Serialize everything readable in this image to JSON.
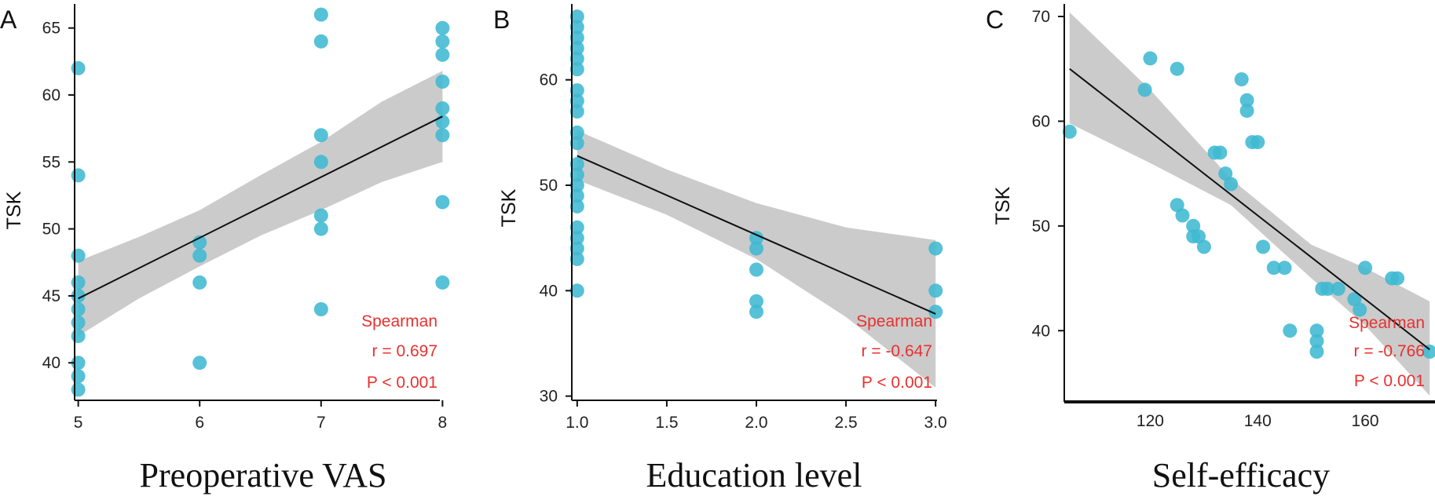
{
  "chart_data": [
    {
      "type": "scatter",
      "panel_label": "A",
      "xlabel": "Preoperative VAS",
      "ylabel": "TSK",
      "xlim": [
        4.97,
        8.03
      ],
      "ylim": [
        37.2,
        66.8
      ],
      "xticks": [
        5,
        6,
        7,
        8
      ],
      "yticks": [
        40,
        45,
        50,
        55,
        60,
        65
      ],
      "x_tick_labels": [
        "5",
        "6",
        "7",
        "8"
      ],
      "y_tick_labels": [
        "40",
        "45",
        "50",
        "55",
        "60",
        "65"
      ],
      "points": [
        [
          5,
          62
        ],
        [
          5,
          54
        ],
        [
          5,
          48
        ],
        [
          5,
          46
        ],
        [
          5,
          45
        ],
        [
          5,
          44
        ],
        [
          5,
          43
        ],
        [
          5,
          42
        ],
        [
          5,
          40
        ],
        [
          5,
          39
        ],
        [
          5,
          38
        ],
        [
          6,
          49
        ],
        [
          6,
          48
        ],
        [
          6,
          46
        ],
        [
          6,
          40
        ],
        [
          7,
          66
        ],
        [
          7,
          64
        ],
        [
          7,
          57
        ],
        [
          7,
          55
        ],
        [
          7,
          51
        ],
        [
          7,
          50
        ],
        [
          7,
          44
        ],
        [
          8,
          65
        ],
        [
          8,
          64
        ],
        [
          8,
          63
        ],
        [
          8,
          61
        ],
        [
          8,
          59
        ],
        [
          8,
          58
        ],
        [
          8,
          57
        ],
        [
          8,
          52
        ],
        [
          8,
          46
        ]
      ],
      "fit": {
        "x": [
          5.0,
          8.0
        ],
        "y": [
          44.8,
          58.4
        ]
      },
      "confidence_band": {
        "x": [
          5.0,
          5.5,
          6.0,
          6.5,
          7.0,
          7.5,
          8.0
        ],
        "lower": [
          42.0,
          44.8,
          47.2,
          49.5,
          51.4,
          53.5,
          55.0
        ],
        "upper": [
          47.6,
          49.4,
          51.4,
          54.0,
          56.5,
          59.5,
          61.8
        ]
      },
      "annotation": [
        "Spearman",
        "r = 0.697",
        "P < 0.001"
      ]
    },
    {
      "type": "scatter",
      "panel_label": "B",
      "xlabel": "Education level",
      "ylabel": "TSK",
      "xlim": [
        0.97,
        3.03
      ],
      "ylim": [
        29.6,
        67.2
      ],
      "xticks": [
        1.0,
        1.5,
        2.0,
        2.5,
        3.0
      ],
      "yticks": [
        30,
        40,
        50,
        60
      ],
      "x_tick_labels": [
        "1.0",
        "1.5",
        "2.0",
        "2.5",
        "3.0"
      ],
      "y_tick_labels": [
        "30",
        "40",
        "50",
        "60"
      ],
      "points": [
        [
          1,
          66
        ],
        [
          1,
          65
        ],
        [
          1,
          64
        ],
        [
          1,
          63
        ],
        [
          1,
          62
        ],
        [
          1,
          61
        ],
        [
          1,
          59
        ],
        [
          1,
          58
        ],
        [
          1,
          57
        ],
        [
          1,
          55
        ],
        [
          1,
          54
        ],
        [
          1,
          52
        ],
        [
          1,
          51
        ],
        [
          1,
          50
        ],
        [
          1,
          49
        ],
        [
          1,
          48
        ],
        [
          1,
          46
        ],
        [
          1,
          45
        ],
        [
          1,
          44
        ],
        [
          1,
          43
        ],
        [
          1,
          40
        ],
        [
          2,
          45
        ],
        [
          2,
          44
        ],
        [
          2,
          42
        ],
        [
          2,
          39
        ],
        [
          2,
          38
        ],
        [
          3,
          44
        ],
        [
          3,
          40
        ],
        [
          3,
          38
        ]
      ],
      "fit": {
        "x": [
          1.0,
          3.0
        ],
        "y": [
          52.8,
          37.8
        ]
      },
      "confidence_band": {
        "x": [
          1.0,
          1.5,
          2.0,
          2.5,
          3.0
        ],
        "lower": [
          50.5,
          47.2,
          43.0,
          37.5,
          30.8
        ],
        "upper": [
          55.2,
          51.5,
          48.3,
          46.0,
          44.8
        ]
      },
      "annotation": [
        "Spearman",
        "r = -0.647",
        "P < 0.001"
      ]
    },
    {
      "type": "scatter",
      "panel_label": "C",
      "xlabel": "Self-efficacy",
      "ylabel": "TSK",
      "xlim": [
        104,
        173
      ],
      "ylim": [
        33.2,
        71.2
      ],
      "xticks": [
        120,
        140,
        160
      ],
      "yticks": [
        40,
        50,
        60,
        70
      ],
      "x_tick_labels": [
        "120",
        "140",
        "160"
      ],
      "y_tick_labels": [
        "40",
        "50",
        "60",
        "70"
      ],
      "points": [
        [
          105,
          59
        ],
        [
          119,
          63
        ],
        [
          120,
          66
        ],
        [
          125,
          65
        ],
        [
          125,
          52
        ],
        [
          126,
          51
        ],
        [
          128,
          50
        ],
        [
          128,
          49
        ],
        [
          129,
          49
        ],
        [
          130,
          48
        ],
        [
          132,
          57
        ],
        [
          133,
          57
        ],
        [
          134,
          55
        ],
        [
          135,
          54
        ],
        [
          137,
          64
        ],
        [
          138,
          62
        ],
        [
          138,
          61
        ],
        [
          139,
          58
        ],
        [
          140,
          58
        ],
        [
          141,
          48
        ],
        [
          143,
          46
        ],
        [
          145,
          46
        ],
        [
          146,
          40
        ],
        [
          151,
          40
        ],
        [
          151,
          39
        ],
        [
          151,
          38
        ],
        [
          152,
          44
        ],
        [
          153,
          44
        ],
        [
          155,
          44
        ],
        [
          158,
          43
        ],
        [
          159,
          42
        ],
        [
          160,
          46
        ],
        [
          165,
          45
        ],
        [
          166,
          45
        ],
        [
          172,
          38
        ]
      ],
      "fit": {
        "x": [
          105,
          172
        ],
        "y": [
          65.0,
          38.2
        ]
      },
      "confidence_band": {
        "x": [
          105,
          120,
          135,
          150,
          160,
          172
        ],
        "lower": [
          59.8,
          56.0,
          52.0,
          45.0,
          40.5,
          33.8
        ],
        "upper": [
          70.4,
          63.0,
          54.5,
          48.2,
          46.0,
          42.8
        ]
      },
      "annotation": [
        "Spearman",
        "r = -0.766",
        "P < 0.001"
      ]
    }
  ],
  "colors": {
    "point": "#3fb8d2",
    "band": "#bdbdbd",
    "fit_line": "#111111",
    "annotation": "#e8312f"
  }
}
